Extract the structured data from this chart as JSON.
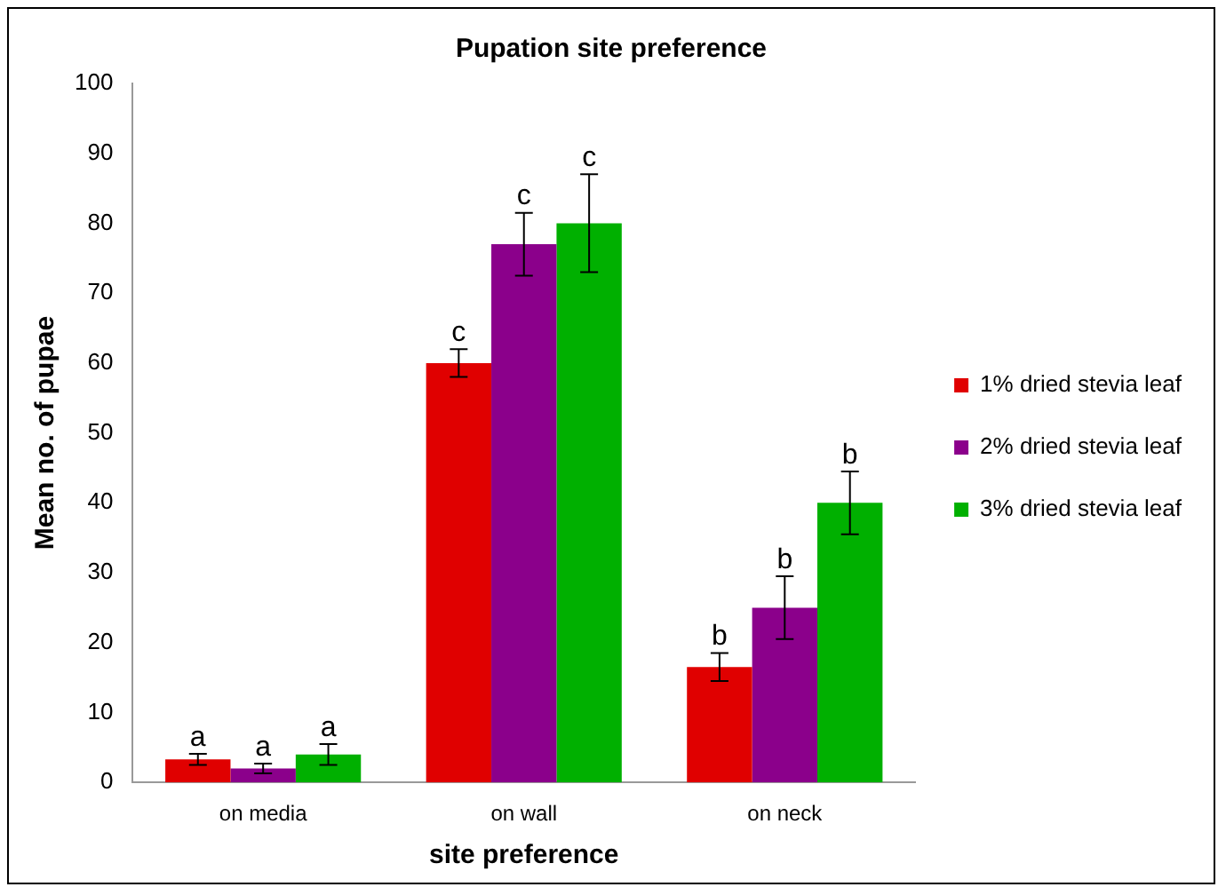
{
  "chart_data": {
    "type": "bar",
    "title": "Pupation site preference",
    "xlabel": "site preference",
    "ylabel": "Mean no. of pupae",
    "categories": [
      "on media",
      "on wall",
      "on neck"
    ],
    "series": [
      {
        "name": "1% dried stevia leaf",
        "color": "#e00000",
        "values": [
          3.3,
          60,
          16.5
        ],
        "errors": [
          0.8,
          2,
          2
        ],
        "value_labels": [
          "a",
          "c",
          "b"
        ]
      },
      {
        "name": "2% dried stevia leaf",
        "color": "#8b008b",
        "values": [
          2,
          77,
          25
        ],
        "errors": [
          0.7,
          4.5,
          4.5
        ],
        "value_labels": [
          "a",
          "c",
          "b"
        ]
      },
      {
        "name": "3% dried stevia leaf",
        "color": "#00b000",
        "values": [
          4,
          80,
          40
        ],
        "errors": [
          1.5,
          7,
          4.5
        ],
        "value_labels": [
          "a",
          "c",
          "b"
        ]
      }
    ],
    "ylim": [
      0,
      100
    ],
    "yticks": [
      0,
      10,
      20,
      30,
      40,
      50,
      60,
      70,
      80,
      90,
      100
    ],
    "grid": false,
    "legend": "right"
  }
}
